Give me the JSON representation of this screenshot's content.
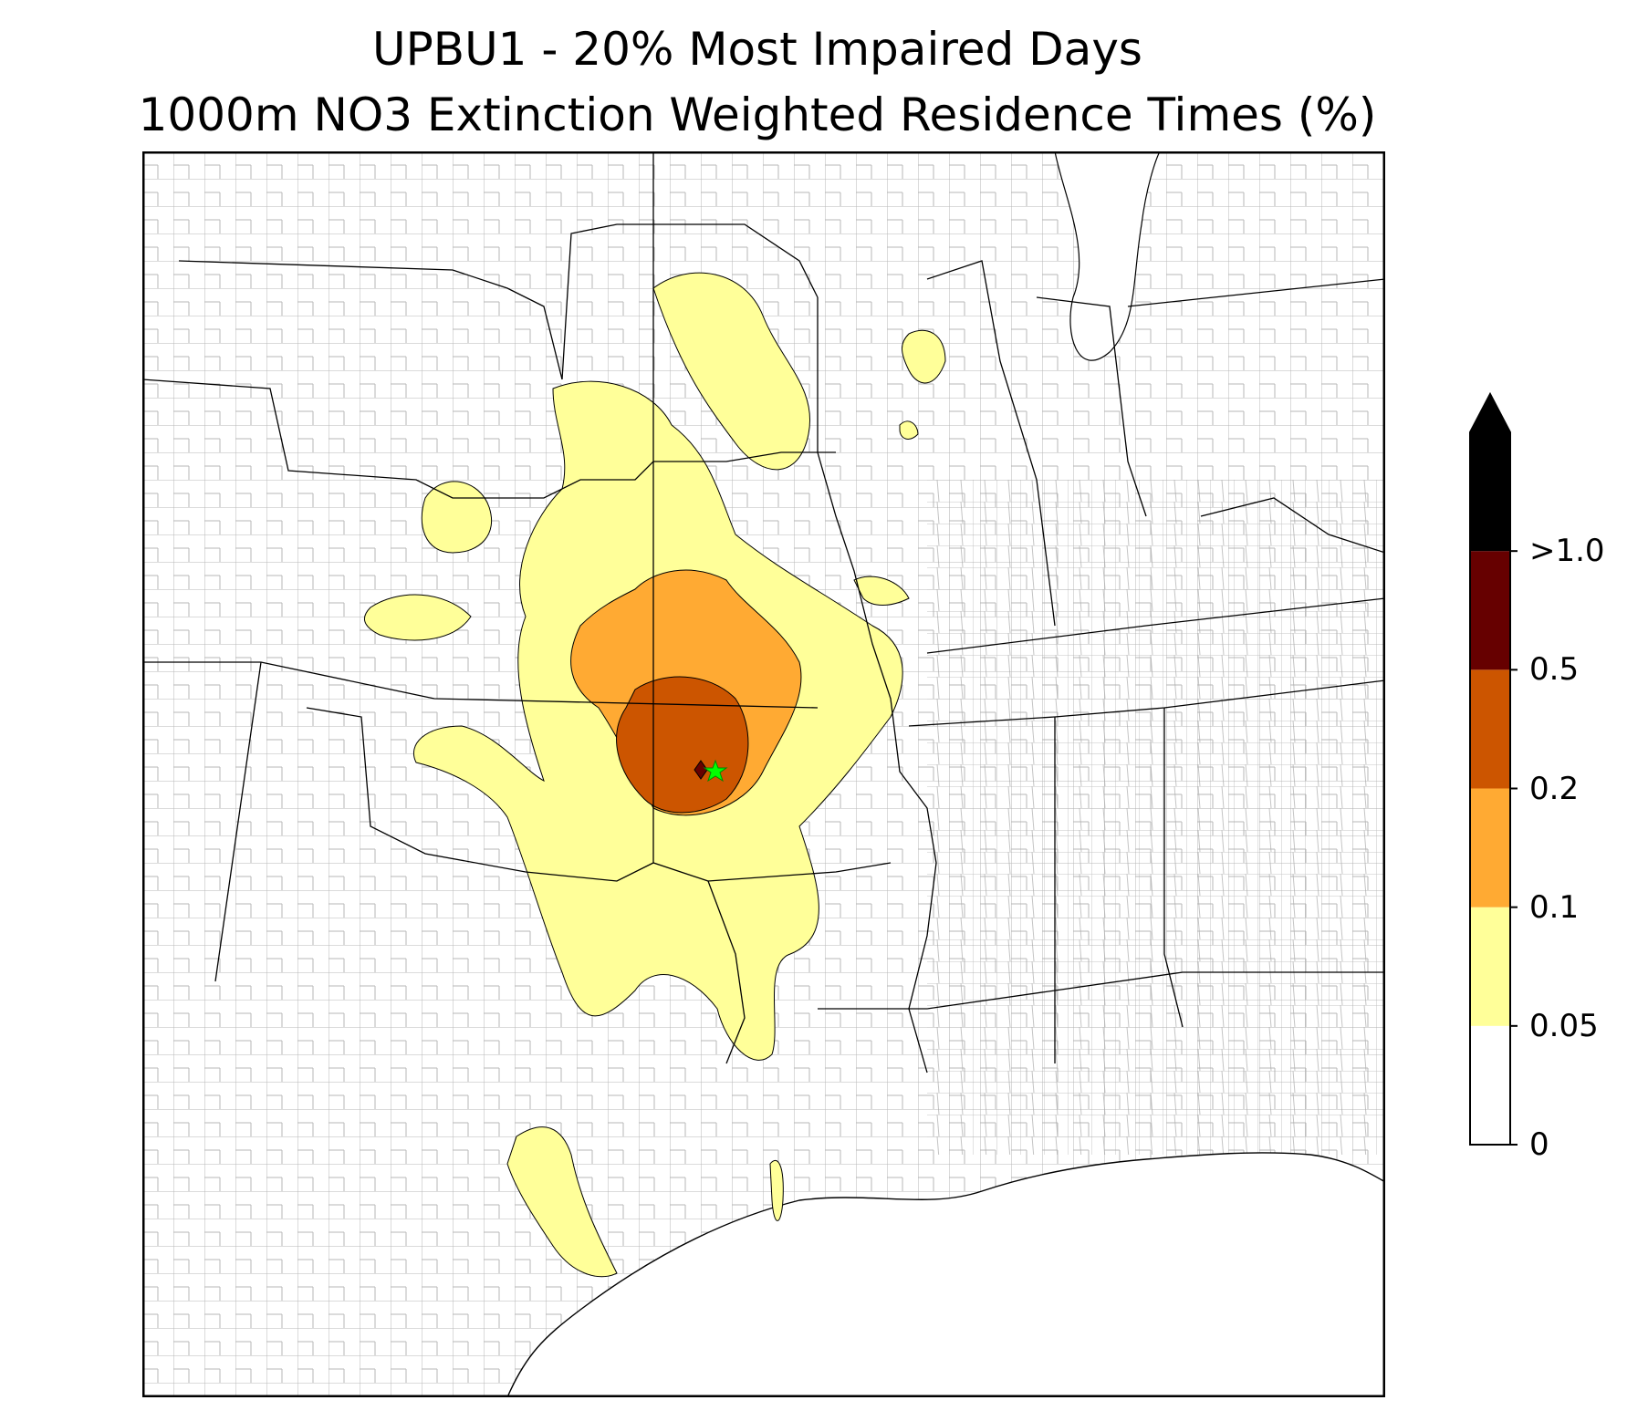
{
  "title": {
    "line1": "UPBU1 - 20% Most Impaired Days",
    "line2": "1000m NO3 Extinction Weighted Residence Times (%)"
  },
  "colorbar": {
    "levels": [
      {
        "label": "0",
        "value": 0,
        "color": "#ffffff"
      },
      {
        "label": "0.05",
        "value": 0.05,
        "color": "#ffff99"
      },
      {
        "label": "0.1",
        "value": 0.1,
        "color": "#ffaa33"
      },
      {
        "label": "0.2",
        "value": 0.2,
        "color": "#cc5500"
      },
      {
        "label": "0.5",
        "value": 0.5,
        "color": "#660000"
      },
      {
        "label": ">1.0",
        "value": 1.0,
        "color": "#000000"
      }
    ],
    "extend": "max",
    "extend_color": "#000000"
  },
  "map": {
    "region": "south-central United States",
    "receptor_marker": {
      "icon": "star-icon",
      "color": "#00ff00"
    },
    "source_marker": {
      "icon": "diamond-icon",
      "color": "#660000"
    },
    "state_line_color": "#000000",
    "county_line_color": "#aaaaaa"
  }
}
